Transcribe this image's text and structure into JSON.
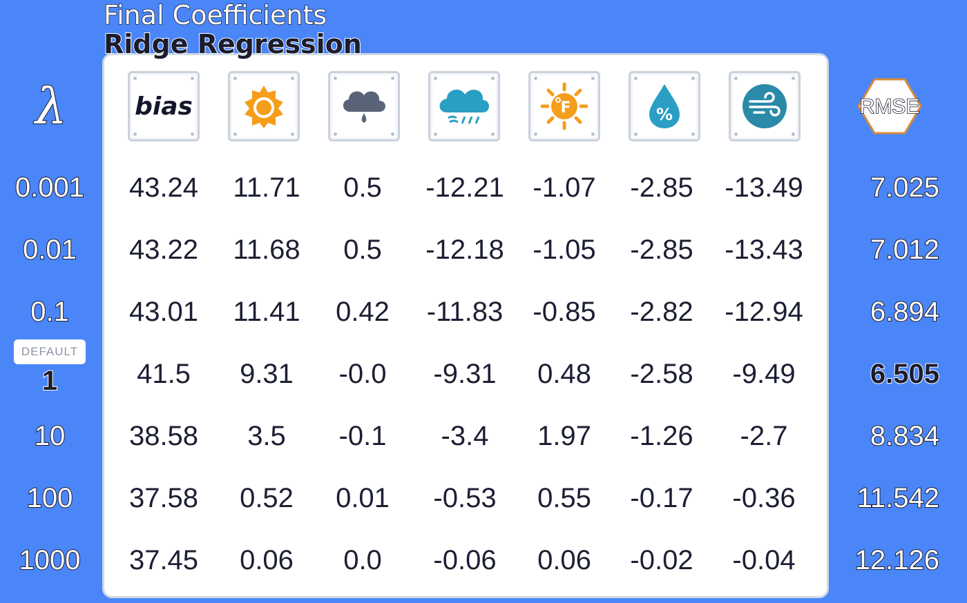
{
  "title": {
    "line1": "Final Coefficients",
    "line2": "Ridge Regression"
  },
  "headers": {
    "lambda": "λ",
    "bias": "bias",
    "rmse": "RMSE",
    "feature_icons": [
      "sun-icon",
      "cloud-rain-drop-icon",
      "rain-cloud-icon",
      "temperature-fahrenheit-icon",
      "humidity-drop-icon",
      "wind-icon"
    ]
  },
  "default_badge": "DEFAULT",
  "colors": {
    "background": "#4a86f7",
    "panel": "#ffffff",
    "sun": "#f59e1b",
    "cloud": "#5a6478",
    "rain": "#2a9ec4",
    "wind": "#2a8aa8"
  },
  "chart_data": {
    "type": "table",
    "title": "Final Coefficients Ridge Regression",
    "columns": [
      "λ",
      "bias",
      "sun",
      "cloud",
      "rain",
      "temperature",
      "humidity",
      "wind",
      "RMSE"
    ],
    "default_lambda": "1",
    "rows": [
      {
        "lambda": "0.001",
        "coefs": [
          "43.24",
          "11.71",
          "0.5",
          "-12.21",
          "-1.07",
          "-2.85",
          "-13.49"
        ],
        "rmse": "7.025"
      },
      {
        "lambda": "0.01",
        "coefs": [
          "43.22",
          "11.68",
          "0.5",
          "-12.18",
          "-1.05",
          "-2.85",
          "-13.43"
        ],
        "rmse": "7.012"
      },
      {
        "lambda": "0.1",
        "coefs": [
          "43.01",
          "11.41",
          "0.42",
          "-11.83",
          "-0.85",
          "-2.82",
          "-12.94"
        ],
        "rmse": "6.894"
      },
      {
        "lambda": "1",
        "coefs": [
          "41.5",
          "9.31",
          "-0.0",
          "-9.31",
          "0.48",
          "-2.58",
          "-9.49"
        ],
        "rmse": "6.505"
      },
      {
        "lambda": "10",
        "coefs": [
          "38.58",
          "3.5",
          "-0.1",
          "-3.4",
          "1.97",
          "-1.26",
          "-2.7"
        ],
        "rmse": "8.834"
      },
      {
        "lambda": "100",
        "coefs": [
          "37.58",
          "0.52",
          "0.01",
          "-0.53",
          "0.55",
          "-0.17",
          "-0.36"
        ],
        "rmse": "11.542"
      },
      {
        "lambda": "1000",
        "coefs": [
          "37.45",
          "0.06",
          "0.0",
          "-0.06",
          "0.06",
          "-0.02",
          "-0.04"
        ],
        "rmse": "12.126"
      }
    ]
  }
}
